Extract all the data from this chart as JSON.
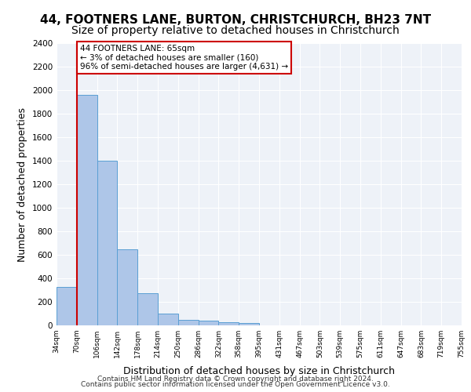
{
  "title1": "44, FOOTNERS LANE, BURTON, CHRISTCHURCH, BH23 7NT",
  "title2": "Size of property relative to detached houses in Christchurch",
  "xlabel": "Distribution of detached houses by size in Christchurch",
  "ylabel": "Number of detached properties",
  "footer1": "Contains HM Land Registry data © Crown copyright and database right 2024.",
  "footer2": "Contains public sector information licensed under the Open Government Licence v3.0.",
  "annotation_title": "44 FOOTNERS LANE: 65sqm",
  "annotation_line1": "← 3% of detached houses are smaller (160)",
  "annotation_line2": "96% of semi-detached houses are larger (4,631) →",
  "bar_values": [
    325,
    1960,
    1400,
    650,
    275,
    100,
    50,
    40,
    30,
    20,
    0,
    0,
    0,
    0,
    0,
    0,
    0,
    0,
    0,
    0
  ],
  "bin_labels": [
    "34sqm",
    "70sqm",
    "106sqm",
    "142sqm",
    "178sqm",
    "214sqm",
    "250sqm",
    "286sqm",
    "322sqm",
    "358sqm",
    "395sqm",
    "431sqm",
    "467sqm",
    "503sqm",
    "539sqm",
    "575sqm",
    "611sqm",
    "647sqm",
    "683sqm",
    "719sqm",
    "755sqm"
  ],
  "bar_color": "#aec6e8",
  "bar_edge_color": "#5a9fd4",
  "vline_x": 0,
  "vline_color": "#cc0000",
  "annotation_box_color": "#cc0000",
  "ylim": [
    0,
    2400
  ],
  "yticks": [
    0,
    200,
    400,
    600,
    800,
    1000,
    1200,
    1400,
    1600,
    1800,
    2000,
    2200,
    2400
  ],
  "bg_color": "#eef2f8",
  "grid_color": "#ffffff",
  "title1_fontsize": 11,
  "title2_fontsize": 10,
  "xlabel_fontsize": 9,
  "ylabel_fontsize": 9
}
